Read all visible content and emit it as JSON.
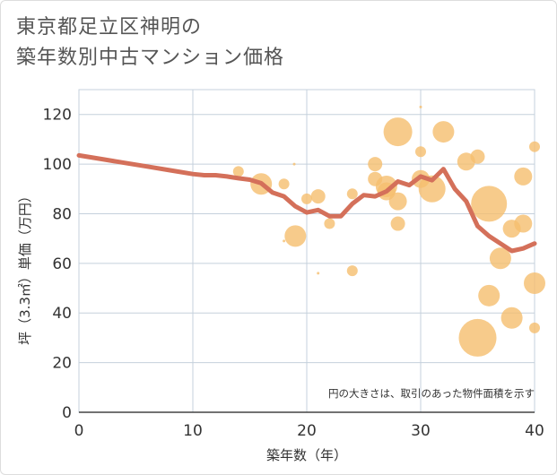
{
  "title": {
    "line1": "東京都足立区神明の",
    "line2": "築年数別中古マンション価格"
  },
  "chart_data": {
    "type": "scatter",
    "xlabel": "築年数（年）",
    "ylabel": "坪（3.3㎡）単価（万円）",
    "xlim": [
      0,
      40
    ],
    "ylim": [
      0,
      130
    ],
    "xticks": [
      0,
      10,
      20,
      30,
      40
    ],
    "yticks": [
      0,
      20,
      40,
      60,
      80,
      100,
      120
    ],
    "grid": true,
    "annotation": "円の大きさは、取引のあった物件面積を示す",
    "colors": {
      "line": "#d4705a",
      "bubble": "#f5be6e",
      "grid": "#c5d0dc",
      "text": "#333333"
    },
    "line_series": {
      "x": [
        0,
        2,
        4,
        6,
        8,
        10,
        11,
        12,
        13,
        14,
        15,
        16,
        17,
        18,
        19,
        20,
        21,
        22,
        23,
        24,
        25,
        26,
        27,
        28,
        29,
        30,
        31,
        32,
        33,
        34,
        35,
        36,
        37,
        38,
        39,
        40
      ],
      "y": [
        103.5,
        102,
        100.5,
        99,
        97.5,
        96,
        95.5,
        95.5,
        95,
        94.3,
        93.7,
        92.3,
        88.5,
        87,
        83,
        80.5,
        81.5,
        79,
        79,
        84,
        87.5,
        87,
        89,
        93,
        91.5,
        95,
        93.5,
        98,
        90,
        85,
        75,
        71,
        68,
        65,
        66,
        68
      ]
    },
    "bubbles": [
      {
        "x": 14,
        "y": 97,
        "s": 6
      },
      {
        "x": 16,
        "y": 92,
        "s": 12
      },
      {
        "x": 18,
        "y": 92,
        "s": 6
      },
      {
        "x": 18.9,
        "y": 100,
        "s": 1.5
      },
      {
        "x": 18,
        "y": 69,
        "s": 1.5
      },
      {
        "x": 19,
        "y": 71,
        "s": 12
      },
      {
        "x": 20,
        "y": 86,
        "s": 6
      },
      {
        "x": 21,
        "y": 87,
        "s": 8
      },
      {
        "x": 21,
        "y": 56,
        "s": 1.5
      },
      {
        "x": 22,
        "y": 76,
        "s": 6
      },
      {
        "x": 24,
        "y": 88,
        "s": 6
      },
      {
        "x": 24,
        "y": 57,
        "s": 6
      },
      {
        "x": 26,
        "y": 100,
        "s": 8
      },
      {
        "x": 26,
        "y": 94,
        "s": 8
      },
      {
        "x": 27,
        "y": 91,
        "s": 12
      },
      {
        "x": 27,
        "y": 89,
        "s": 10
      },
      {
        "x": 28,
        "y": 113,
        "s": 16
      },
      {
        "x": 28,
        "y": 85,
        "s": 10
      },
      {
        "x": 28,
        "y": 76,
        "s": 8
      },
      {
        "x": 30,
        "y": 105,
        "s": 6
      },
      {
        "x": 30,
        "y": 123,
        "s": 1.5
      },
      {
        "x": 30,
        "y": 94,
        "s": 10
      },
      {
        "x": 31,
        "y": 90,
        "s": 15
      },
      {
        "x": 32,
        "y": 113,
        "s": 12
      },
      {
        "x": 34,
        "y": 101,
        "s": 10
      },
      {
        "x": 35,
        "y": 103,
        "s": 8
      },
      {
        "x": 35,
        "y": 30,
        "s": 21
      },
      {
        "x": 36,
        "y": 84,
        "s": 20
      },
      {
        "x": 36,
        "y": 47,
        "s": 12
      },
      {
        "x": 37,
        "y": 62,
        "s": 12
      },
      {
        "x": 38,
        "y": 74,
        "s": 10
      },
      {
        "x": 38,
        "y": 38,
        "s": 12
      },
      {
        "x": 39,
        "y": 95,
        "s": 10
      },
      {
        "x": 39,
        "y": 76,
        "s": 10
      },
      {
        "x": 40,
        "y": 107,
        "s": 6
      },
      {
        "x": 40,
        "y": 52,
        "s": 12
      },
      {
        "x": 40,
        "y": 34,
        "s": 6
      }
    ]
  }
}
